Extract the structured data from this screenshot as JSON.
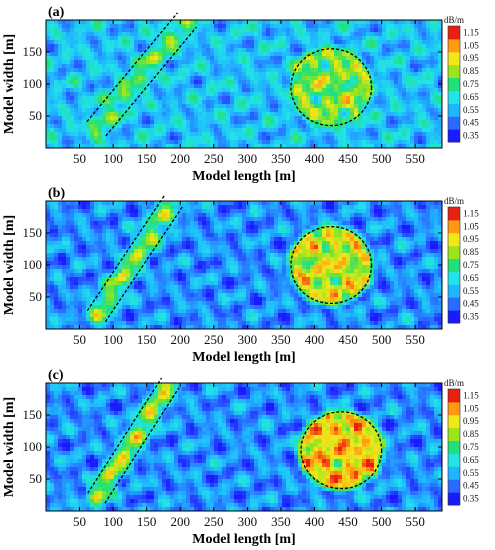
{
  "chart_data": [
    {
      "type": "heatmap",
      "panel_label": "(a)",
      "xlabel": "Model length [m]",
      "ylabel": "Model width [m]",
      "xlim": [
        0,
        590
      ],
      "ylim": [
        0,
        200
      ],
      "x_ticks": [
        50,
        100,
        150,
        200,
        250,
        300,
        350,
        400,
        450,
        500,
        550
      ],
      "y_ticks": [
        50,
        100,
        150
      ],
      "colorbar": {
        "unit": "dB/m",
        "ticks": [
          0.35,
          0.45,
          0.55,
          0.65,
          0.75,
          0.85,
          0.95,
          1.05,
          1.15
        ]
      },
      "background_level": 0.58,
      "fault_zone": {
        "center": [
          [
            75,
            30
          ],
          [
            210,
            200
          ]
        ],
        "half_width": 18,
        "level": 0.78
      },
      "circle_anomaly": {
        "center": [
          425,
          95
        ],
        "radius": 60,
        "level": 0.82
      }
    },
    {
      "type": "heatmap",
      "panel_label": "(b)",
      "xlabel": "Model length [m]",
      "ylabel": "Model width [m]",
      "xlim": [
        0,
        590
      ],
      "ylim": [
        0,
        200
      ],
      "x_ticks": [
        50,
        100,
        150,
        200,
        250,
        300,
        350,
        400,
        450,
        500,
        550
      ],
      "y_ticks": [
        50,
        100,
        150
      ],
      "colorbar": {
        "unit": "dB/m",
        "ticks": [
          0.35,
          0.45,
          0.55,
          0.65,
          0.75,
          0.85,
          0.95,
          1.05,
          1.15
        ]
      },
      "background_level": 0.5,
      "fault_zone": {
        "center": [
          [
            75,
            20
          ],
          [
            190,
            200
          ]
        ],
        "half_width": 16,
        "level": 0.85
      },
      "circle_anomaly": {
        "center": [
          425,
          100
        ],
        "radius": 60,
        "level": 0.9
      }
    },
    {
      "type": "heatmap",
      "panel_label": "(c)",
      "xlabel": "Model length [m]",
      "ylabel": "Model width [m]",
      "xlim": [
        0,
        590
      ],
      "ylim": [
        0,
        200
      ],
      "x_ticks": [
        50,
        100,
        150,
        200,
        250,
        300,
        350,
        400,
        450,
        500,
        550
      ],
      "y_ticks": [
        50,
        100,
        150
      ],
      "colorbar": {
        "unit": "dB/m",
        "ticks": [
          0.35,
          0.45,
          0.55,
          0.65,
          0.75,
          0.85,
          0.95,
          1.05,
          1.15
        ]
      },
      "background_level": 0.5,
      "fault_zone": {
        "center": [
          [
            75,
            20
          ],
          [
            185,
            200
          ]
        ],
        "half_width": 15,
        "level": 0.9
      },
      "circle_anomaly": {
        "center": [
          440,
          95
        ],
        "radius": 60,
        "level": 0.98
      }
    }
  ]
}
